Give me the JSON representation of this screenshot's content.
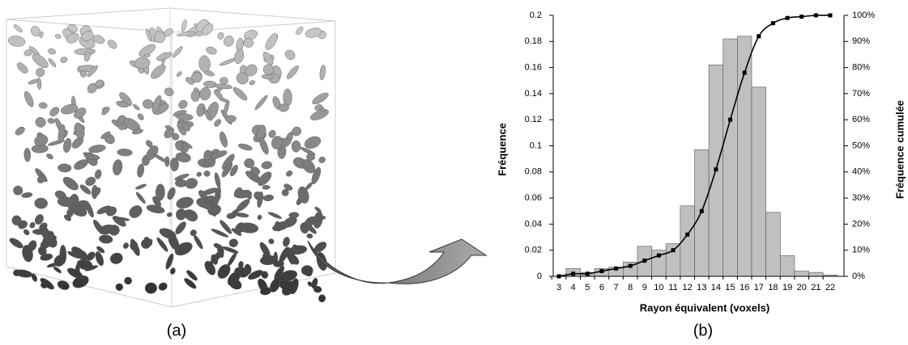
{
  "panel_labels": [
    "(a)",
    "(b)"
  ],
  "chart_data": {
    "type": "bar",
    "x_label": "Rayon équivalent  (voxels)",
    "y_label": "Fréquence",
    "y2_label": "Fréquence cumulée",
    "categories": [
      "3",
      "4",
      "5",
      "6",
      "7",
      "8",
      "9",
      "10",
      "11",
      "12",
      "13",
      "14",
      "15",
      "16",
      "17",
      "18",
      "19",
      "20",
      "21",
      "22"
    ],
    "series": [
      {
        "type": "bar",
        "color": "#c0c0c0",
        "values": [
          0,
          0.006,
          0.003,
          0.006,
          0.007,
          0.011,
          0.023,
          0.02,
          0.025,
          0.054,
          0.097,
          0.162,
          0.182,
          0.184,
          0.145,
          0.049,
          0.016,
          0.004,
          0.003,
          0.001
        ]
      },
      {
        "type": "line",
        "axis": "y2",
        "color": "#000000",
        "values": [
          0,
          1,
          1,
          2,
          3,
          4,
          6,
          8,
          10,
          16,
          25,
          41,
          60,
          78,
          92,
          97,
          99,
          99.5,
          100,
          100
        ]
      }
    ],
    "ylim": [
      0,
      0.2
    ],
    "yticks": [
      0,
      0.02,
      0.04,
      0.06,
      0.08,
      0.1,
      0.12,
      0.14,
      0.16,
      0.18,
      0.2
    ],
    "y2lim": [
      0,
      100
    ],
    "y2ticks": [
      {
        "value": 0,
        "label": "0%"
      },
      {
        "value": 10,
        "label": "10%"
      },
      {
        "value": 20,
        "label": "20%"
      },
      {
        "value": 30,
        "label": "30%"
      },
      {
        "value": 40,
        "label": "40%"
      },
      {
        "value": 50,
        "label": "50%"
      },
      {
        "value": 60,
        "label": "60%"
      },
      {
        "value": 70,
        "label": "70%"
      },
      {
        "value": 80,
        "label": "80%"
      },
      {
        "value": 90,
        "label": "90%"
      },
      {
        "value": 100,
        "label": "100%"
      }
    ]
  }
}
